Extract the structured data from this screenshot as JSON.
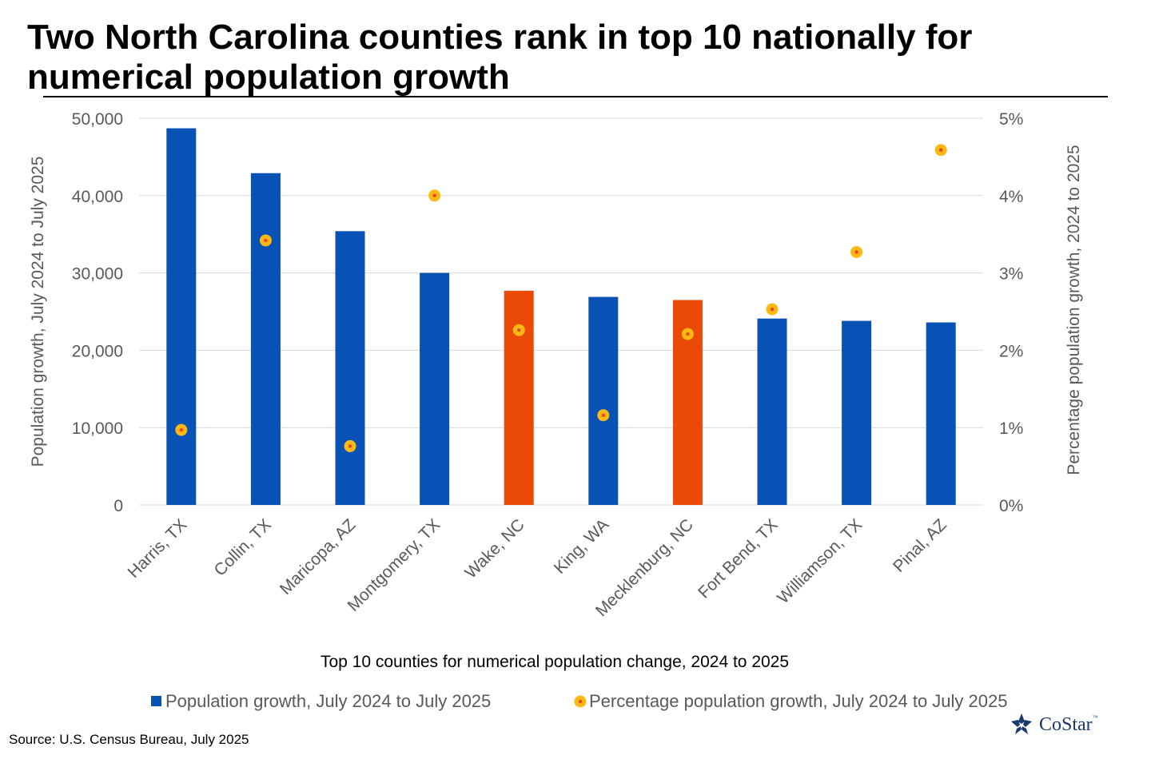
{
  "title": "Two North Carolina counties rank in top 10 nationally for numerical population growth",
  "source": "Source: U.S. Census Bureau, July 2025",
  "brand": {
    "name": "CoStar",
    "tm": "™"
  },
  "colors": {
    "bar_default": "#0752b4",
    "bar_highlight": "#eb4a06",
    "dot_outer": "#fdb913",
    "dot_inner": "#e8452b",
    "gridline": "#d9d9d9",
    "axis_text": "#595959"
  },
  "chart_data": {
    "type": "bar",
    "title": "Two North Carolina counties rank in top 10 nationally for numerical population growth",
    "xlabel": "Top 10 counties for numerical population change, 2024 to 2025",
    "ylabel": "Population growth, July 2024 to July 2025",
    "y2label": "Percentage population growth, 2024 to 2025",
    "ylim": [
      0,
      50000
    ],
    "y2lim": [
      0,
      5
    ],
    "yticks": [
      "0",
      "10,000",
      "20,000",
      "30,000",
      "40,000",
      "50,000"
    ],
    "y2ticks": [
      "0%",
      "1%",
      "2%",
      "3%",
      "4%",
      "5%"
    ],
    "grid": true,
    "legend_position": "bottom",
    "categories": [
      "Harris, TX",
      "Collin, TX",
      "Maricopa, AZ",
      "Montgomery, TX",
      "Wake, NC",
      "King, WA",
      "Mecklenburg, NC",
      "Fort Bend, TX",
      "Williamson, TX",
      "Pinal, AZ"
    ],
    "highlight": [
      "Wake, NC",
      "Mecklenburg, NC"
    ],
    "series": [
      {
        "name": "Population growth, July 2024 to July 2025",
        "type": "bar",
        "axis": "left",
        "values": [
          48700,
          42900,
          35400,
          30000,
          27700,
          26900,
          26500,
          24100,
          23800,
          23600
        ]
      },
      {
        "name": "Percentage population growth, July 2024 to July 2025",
        "type": "scatter",
        "axis": "right",
        "values": [
          0.97,
          3.42,
          0.76,
          4.0,
          2.26,
          1.16,
          2.21,
          2.53,
          3.27,
          4.59
        ]
      }
    ]
  }
}
